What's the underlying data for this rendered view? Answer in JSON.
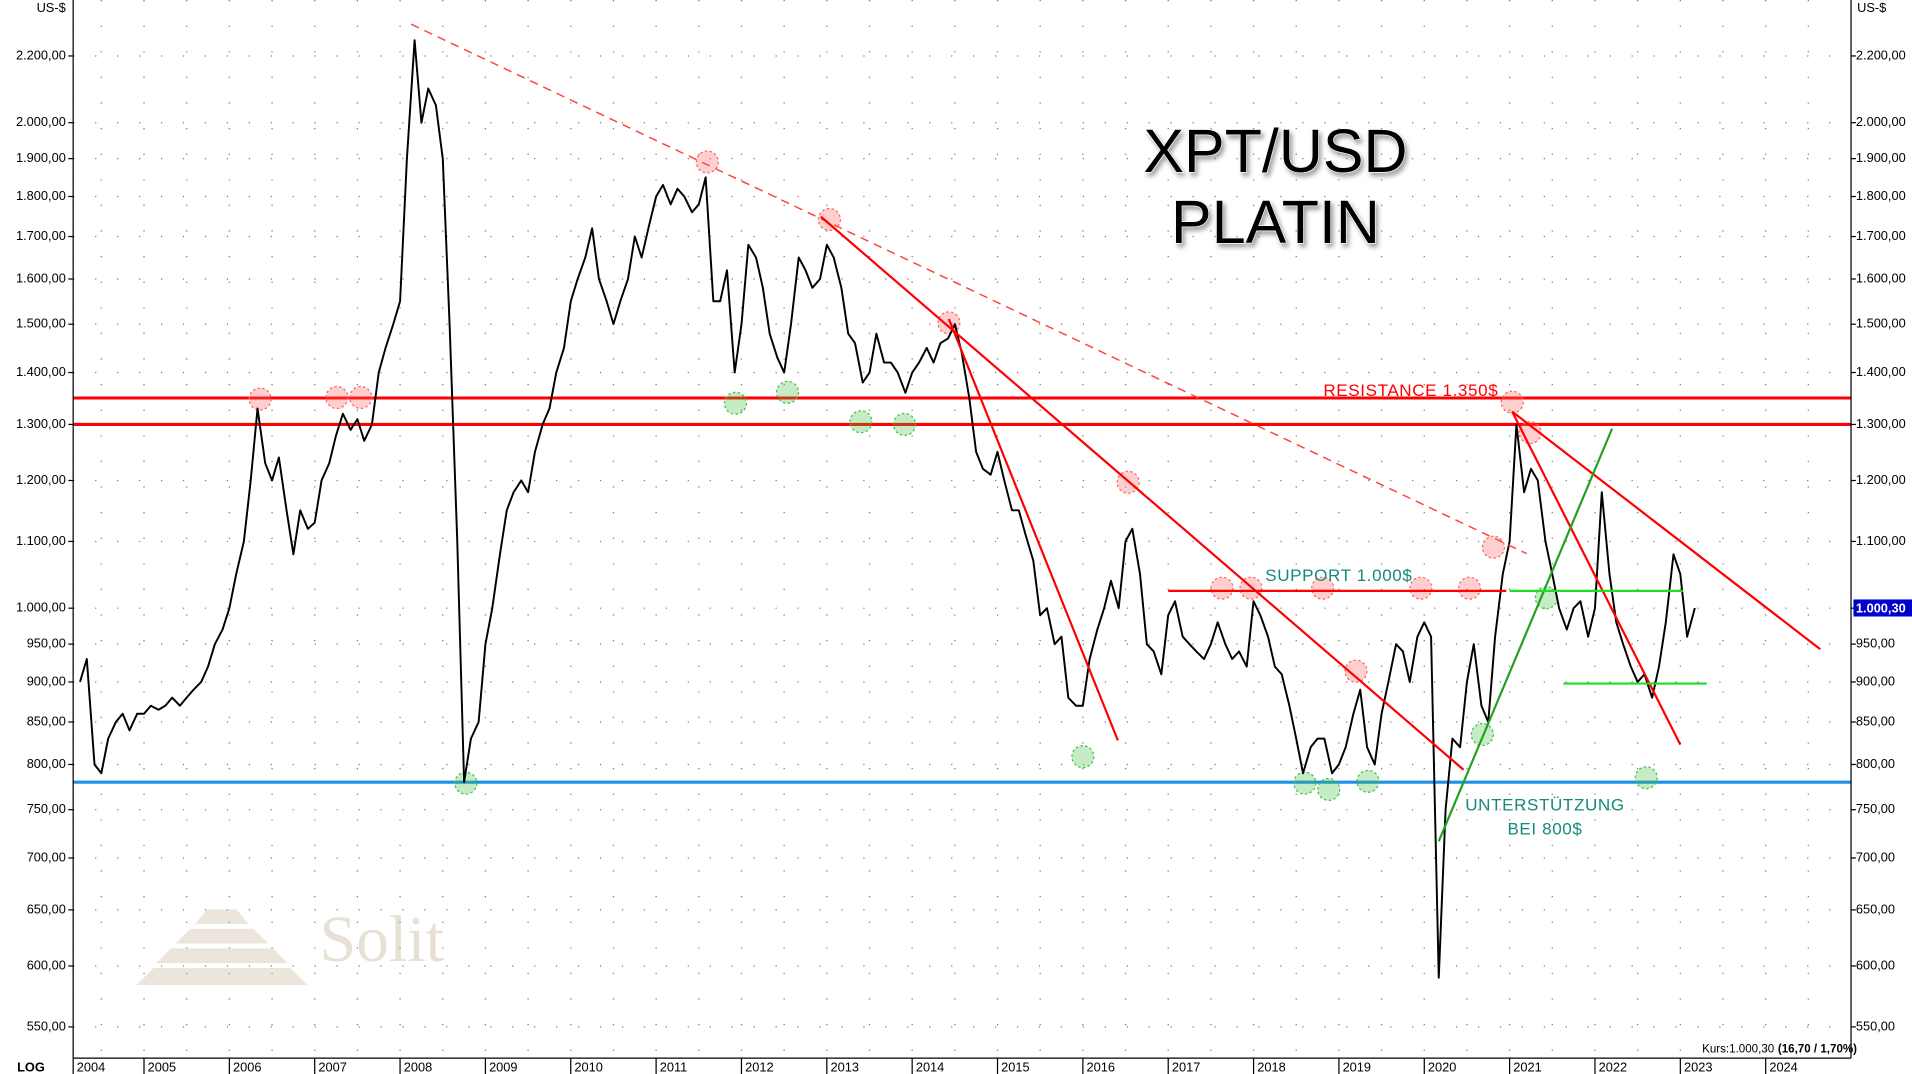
{
  "chart_data": {
    "type": "line",
    "title": "XPT/USD",
    "subtitle": "PLATIN",
    "y_unit_left": "US-$",
    "y_unit_right": "US-$",
    "scale_label": "LOG",
    "log_scale": true,
    "grid": true,
    "color": "#000000",
    "x": [
      2004.25,
      2004.33,
      2004.42,
      2004.5,
      2004.58,
      2004.67,
      2004.75,
      2004.83,
      2004.92,
      2005,
      2005.08,
      2005.17,
      2005.25,
      2005.33,
      2005.42,
      2005.5,
      2005.58,
      2005.67,
      2005.75,
      2005.83,
      2005.92,
      2006,
      2006.08,
      2006.17,
      2006.25,
      2006.33,
      2006.42,
      2006.5,
      2006.58,
      2006.67,
      2006.75,
      2006.83,
      2006.92,
      2007,
      2007.08,
      2007.17,
      2007.25,
      2007.33,
      2007.42,
      2007.5,
      2007.58,
      2007.67,
      2007.75,
      2007.83,
      2007.92,
      2008,
      2008.08,
      2008.17,
      2008.25,
      2008.33,
      2008.42,
      2008.5,
      2008.58,
      2008.67,
      2008.75,
      2008.83,
      2008.92,
      2009,
      2009.08,
      2009.17,
      2009.25,
      2009.33,
      2009.42,
      2009.5,
      2009.58,
      2009.67,
      2009.75,
      2009.83,
      2009.92,
      2010,
      2010.08,
      2010.17,
      2010.25,
      2010.33,
      2010.42,
      2010.5,
      2010.58,
      2010.67,
      2010.75,
      2010.83,
      2010.92,
      2011,
      2011.08,
      2011.17,
      2011.25,
      2011.33,
      2011.42,
      2011.5,
      2011.58,
      2011.67,
      2011.75,
      2011.83,
      2011.92,
      2012,
      2012.08,
      2012.17,
      2012.25,
      2012.33,
      2012.42,
      2012.5,
      2012.58,
      2012.67,
      2012.75,
      2012.83,
      2012.92,
      2013,
      2013.08,
      2013.17,
      2013.25,
      2013.33,
      2013.42,
      2013.5,
      2013.58,
      2013.67,
      2013.75,
      2013.83,
      2013.92,
      2014,
      2014.08,
      2014.17,
      2014.25,
      2014.33,
      2014.42,
      2014.5,
      2014.58,
      2014.67,
      2014.75,
      2014.83,
      2014.92,
      2015,
      2015.08,
      2015.17,
      2015.25,
      2015.33,
      2015.42,
      2015.5,
      2015.58,
      2015.67,
      2015.75,
      2015.83,
      2015.92,
      2016,
      2016.08,
      2016.17,
      2016.25,
      2016.33,
      2016.42,
      2016.5,
      2016.58,
      2016.67,
      2016.75,
      2016.83,
      2016.92,
      2017,
      2017.08,
      2017.17,
      2017.25,
      2017.33,
      2017.42,
      2017.5,
      2017.58,
      2017.67,
      2017.75,
      2017.83,
      2017.92,
      2018,
      2018.08,
      2018.17,
      2018.25,
      2018.33,
      2018.42,
      2018.5,
      2018.58,
      2018.67,
      2018.75,
      2018.83,
      2018.92,
      2019,
      2019.08,
      2019.17,
      2019.25,
      2019.33,
      2019.42,
      2019.5,
      2019.58,
      2019.67,
      2019.75,
      2019.83,
      2019.92,
      2020,
      2020.08,
      2020.17,
      2020.25,
      2020.33,
      2020.42,
      2020.5,
      2020.58,
      2020.67,
      2020.75,
      2020.83,
      2020.92,
      2021,
      2021.08,
      2021.17,
      2021.25,
      2021.33,
      2021.42,
      2021.5,
      2021.58,
      2021.67,
      2021.75,
      2021.83,
      2021.92,
      2022,
      2022.08,
      2022.17,
      2022.25,
      2022.33,
      2022.42,
      2022.5,
      2022.58,
      2022.67,
      2022.75,
      2022.83,
      2022.92,
      2023,
      2023.08,
      2023.17
    ],
    "values": [
      900,
      930,
      800,
      790,
      830,
      850,
      860,
      840,
      860,
      860,
      870,
      865,
      870,
      880,
      870,
      880,
      890,
      900,
      920,
      950,
      970,
      1000,
      1050,
      1100,
      1200,
      1330,
      1230,
      1200,
      1240,
      1150,
      1080,
      1150,
      1120,
      1130,
      1200,
      1230,
      1280,
      1320,
      1290,
      1310,
      1270,
      1300,
      1400,
      1450,
      1500,
      1550,
      1900,
      2250,
      2000,
      2100,
      2050,
      1900,
      1500,
      1100,
      780,
      830,
      850,
      950,
      1000,
      1080,
      1150,
      1180,
      1200,
      1180,
      1250,
      1300,
      1330,
      1400,
      1450,
      1550,
      1600,
      1650,
      1720,
      1600,
      1550,
      1500,
      1550,
      1600,
      1700,
      1650,
      1730,
      1800,
      1830,
      1780,
      1820,
      1800,
      1760,
      1780,
      1850,
      1550,
      1550,
      1620,
      1400,
      1500,
      1680,
      1650,
      1580,
      1480,
      1430,
      1400,
      1500,
      1650,
      1620,
      1580,
      1600,
      1680,
      1650,
      1580,
      1480,
      1460,
      1380,
      1400,
      1480,
      1420,
      1420,
      1400,
      1360,
      1400,
      1420,
      1450,
      1420,
      1460,
      1470,
      1500,
      1440,
      1350,
      1250,
      1220,
      1210,
      1250,
      1200,
      1150,
      1150,
      1110,
      1070,
      990,
      1000,
      950,
      960,
      880,
      870,
      870,
      930,
      970,
      1000,
      1040,
      1000,
      1100,
      1120,
      1050,
      950,
      940,
      910,
      990,
      1010,
      960,
      950,
      940,
      930,
      950,
      980,
      950,
      930,
      940,
      920,
      1010,
      990,
      960,
      920,
      910,
      870,
      830,
      790,
      820,
      830,
      830,
      790,
      800,
      820,
      860,
      890,
      820,
      800,
      860,
      900,
      950,
      940,
      900,
      960,
      980,
      960,
      590,
      750,
      830,
      820,
      900,
      950,
      870,
      850,
      960,
      1050,
      1100,
      1300,
      1180,
      1220,
      1200,
      1100,
      1050,
      1000,
      970,
      1000,
      1010,
      960,
      1000,
      1180,
      1050,
      980,
      950,
      920,
      900,
      910,
      880,
      920,
      980,
      1080,
      1050,
      960,
      1000.3
    ],
    "xlim": [
      2004.17,
      2025.0
    ],
    "xticks": [
      2004,
      2005,
      2006,
      2007,
      2008,
      2009,
      2010,
      2011,
      2012,
      2013,
      2014,
      2015,
      2016,
      2017,
      2018,
      2019,
      2020,
      2021,
      2022,
      2023,
      2024
    ],
    "ylim": [
      526,
      2383
    ],
    "yticks": [
      {
        "value": 550,
        "label": "550,00"
      },
      {
        "value": 600,
        "label": "600,00"
      },
      {
        "value": 650,
        "label": "650,00"
      },
      {
        "value": 700,
        "label": "700,00"
      },
      {
        "value": 750,
        "label": "750,00"
      },
      {
        "value": 800,
        "label": "800,00"
      },
      {
        "value": 850,
        "label": "850,00"
      },
      {
        "value": 900,
        "label": "900,00"
      },
      {
        "value": 950,
        "label": "950,00"
      },
      {
        "value": 1000,
        "label": "1.000,00"
      },
      {
        "value": 1100,
        "label": "1.100,00"
      },
      {
        "value": 1200,
        "label": "1.200,00"
      },
      {
        "value": 1300,
        "label": "1.300,00"
      },
      {
        "value": 1400,
        "label": "1.400,00"
      },
      {
        "value": 1500,
        "label": "1.500,00"
      },
      {
        "value": 1600,
        "label": "1.600,00"
      },
      {
        "value": 1700,
        "label": "1.700,00"
      },
      {
        "value": 1800,
        "label": "1.800,00"
      },
      {
        "value": 1900,
        "label": "1.900,00"
      },
      {
        "value": 2000,
        "label": "2.000,00"
      },
      {
        "value": 2200,
        "label": "2.200,00"
      }
    ],
    "last_price": {
      "value": 1000.3,
      "label": "1.000,30"
    },
    "quote": "Kurs:1.000,30",
    "quote_change": "(16,70 / 1,70%)",
    "levels": [
      {
        "value": 1350,
        "color": "#ff0000"
      },
      {
        "value": 1300,
        "color": "#ff0000"
      },
      {
        "value": 780,
        "color": "#1e8fe6"
      }
    ],
    "trend_lines": [
      {
        "x": [
          2008.13,
          2021.2
        ],
        "y": [
          2302,
          1081
        ],
        "color": "#ff4040",
        "dashed": true
      },
      {
        "x": [
          2012.93,
          2020.46
        ],
        "y": [
          1749,
          794
        ],
        "color": "#ff0000",
        "dashed": false
      },
      {
        "x": [
          2014.43,
          2016.41
        ],
        "y": [
          1511,
          828
        ],
        "color": "#ff0000",
        "dashed": false
      },
      {
        "x": [
          2021.03,
          2024.64
        ],
        "y": [
          1324,
          943
        ],
        "color": "#ff0000",
        "dashed": false
      },
      {
        "x": [
          2021.03,
          2023.0
        ],
        "y": [
          1324,
          823
        ],
        "color": "#ff0000",
        "dashed": false
      },
      {
        "x": [
          2017.0,
          2020.96
        ],
        "y": [
          1025,
          1025
        ],
        "color": "#ff0000",
        "dashed": false
      },
      {
        "x": [
          2020.17,
          2022.2
        ],
        "y": [
          717,
          1292
        ],
        "color": "#22a022",
        "dashed": false
      },
      {
        "x": [
          2021.0,
          2023.03
        ],
        "y": [
          1025,
          1025
        ],
        "color": "#22dd22",
        "dashed": false
      },
      {
        "x": [
          2021.63,
          2023.31
        ],
        "y": [
          898,
          898
        ],
        "color": "#22dd22",
        "dashed": false
      }
    ],
    "touch_points": [
      {
        "x": 2006.36,
        "y": 1348,
        "color": "#ff6060"
      },
      {
        "x": 2007.26,
        "y": 1351,
        "color": "#ff6060"
      },
      {
        "x": 2007.54,
        "y": 1351,
        "color": "#ff6060"
      },
      {
        "x": 2011.6,
        "y": 1891,
        "color": "#ff6060"
      },
      {
        "x": 2013.03,
        "y": 1742,
        "color": "#ff6060"
      },
      {
        "x": 2014.43,
        "y": 1503,
        "color": "#ff6060"
      },
      {
        "x": 2016.53,
        "y": 1197,
        "color": "#ff6060"
      },
      {
        "x": 2017.63,
        "y": 1029,
        "color": "#ff6060"
      },
      {
        "x": 2017.97,
        "y": 1029,
        "color": "#ff6060"
      },
      {
        "x": 2018.81,
        "y": 1029,
        "color": "#ff6060"
      },
      {
        "x": 2019.2,
        "y": 914,
        "color": "#ff6060"
      },
      {
        "x": 2019.96,
        "y": 1029,
        "color": "#ff6060"
      },
      {
        "x": 2020.53,
        "y": 1029,
        "color": "#ff6060"
      },
      {
        "x": 2020.81,
        "y": 1091,
        "color": "#ff6060"
      },
      {
        "x": 2021.03,
        "y": 1342,
        "color": "#ff6060"
      },
      {
        "x": 2021.24,
        "y": 1285,
        "color": "#ff6060"
      },
      {
        "x": 2011.93,
        "y": 1340,
        "color": "#40c040"
      },
      {
        "x": 2012.54,
        "y": 1361,
        "color": "#40c040"
      },
      {
        "x": 2013.4,
        "y": 1305,
        "color": "#40c040"
      },
      {
        "x": 2013.91,
        "y": 1300,
        "color": "#40c040"
      },
      {
        "x": 2008.77,
        "y": 779,
        "color": "#40c040"
      },
      {
        "x": 2016.0,
        "y": 809,
        "color": "#40c040"
      },
      {
        "x": 2018.6,
        "y": 779,
        "color": "#40c040"
      },
      {
        "x": 2018.88,
        "y": 772,
        "color": "#40c040"
      },
      {
        "x": 2019.34,
        "y": 781,
        "color": "#40c040"
      },
      {
        "x": 2020.68,
        "y": 835,
        "color": "#40c040"
      },
      {
        "x": 2021.43,
        "y": 1015,
        "color": "#40c040"
      },
      {
        "x": 2022.6,
        "y": 785,
        "color": "#40c040"
      }
    ],
    "annotations": {
      "resistance": "RESISTANCE 1.350$",
      "support": "SUPPORT 1.000$",
      "support_low_1": "UNTERSTÜTZUNG",
      "support_low_2": "BEI 800$"
    },
    "watermark": "Solit"
  }
}
